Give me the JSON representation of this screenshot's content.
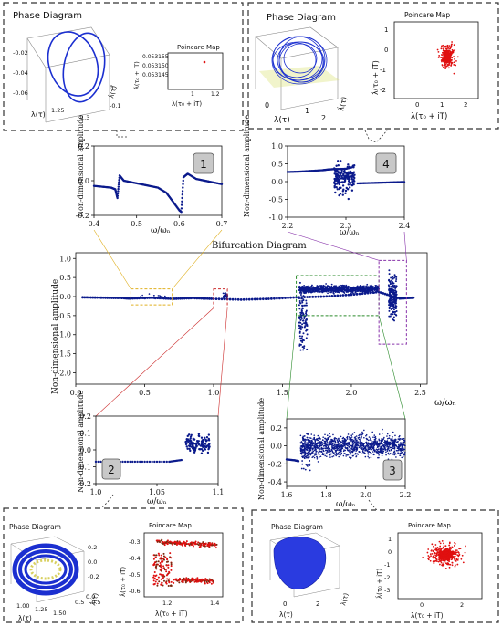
{
  "chart_data": [
    {
      "id": "bifurcation",
      "type": "scatter",
      "title": "Bifurcation Diagram",
      "xlabel": "ω/ωₙ",
      "ylabel": "Non-dimensional amplitude",
      "xlim": [
        0.0,
        2.55
      ],
      "ylim": [
        -2.3,
        1.15
      ],
      "xticks": [
        "0.0",
        "0.5",
        "1.0",
        "1.5",
        "2.0",
        "2.5"
      ],
      "xtick_values": [
        0.0,
        0.5,
        1.0,
        1.5,
        2.0,
        2.5
      ],
      "yticks": [
        "1.0",
        "0.5",
        "0.0",
        "-0.5",
        "-1.0",
        "-1.5",
        "-2.0"
      ],
      "ytick_values": [
        1.0,
        0.5,
        0.0,
        -0.5,
        -1.0,
        -1.5,
        -2.0
      ],
      "branch": [
        [
          0.05,
          -0.02
        ],
        [
          0.2,
          -0.03
        ],
        [
          0.35,
          -0.04
        ],
        [
          0.4,
          -0.05
        ],
        [
          0.55,
          -0.03
        ],
        [
          0.7,
          -0.06
        ],
        [
          0.85,
          -0.04
        ],
        [
          1.0,
          -0.06
        ],
        [
          1.2,
          -0.08
        ],
        [
          1.4,
          -0.06
        ],
        [
          1.6,
          -0.02
        ],
        [
          1.8,
          0.0
        ],
        [
          2.0,
          0.05
        ],
        [
          2.2,
          0.12
        ],
        [
          2.35,
          -0.05
        ],
        [
          2.45,
          -0.03
        ]
      ],
      "zoom_regions": [
        {
          "x": [
            0.4,
            0.7
          ],
          "y": [
            -0.22,
            0.2
          ],
          "color": "#e0b020"
        },
        {
          "x": [
            1.0,
            1.1
          ],
          "y": [
            -0.3,
            0.2
          ],
          "color": "#cc2b2b"
        },
        {
          "x": [
            1.6,
            2.2
          ],
          "y": [
            -0.5,
            0.55
          ],
          "color": "#2a8a2a"
        },
        {
          "x": [
            2.2,
            2.4
          ],
          "y": [
            -1.25,
            0.95
          ],
          "color": "#8833aa"
        }
      ]
    },
    {
      "id": "zoom-1",
      "type": "scatter",
      "badge": "1",
      "xlabel": "ω/ωₙ",
      "ylabel": "Non-dimensional amplitude",
      "xlim": [
        0.4,
        0.7
      ],
      "ylim": [
        -0.2,
        0.2
      ],
      "xticks": [
        "0.4",
        "0.5",
        "0.6",
        "0.7"
      ],
      "xtick_values": [
        0.4,
        0.5,
        0.6,
        0.7
      ],
      "yticks": [
        "0.2",
        "0.0",
        "-0.2"
      ],
      "ytick_values": [
        0.2,
        0.0,
        -0.2
      ],
      "points": [
        [
          0.4,
          -0.03
        ],
        [
          0.42,
          -0.035
        ],
        [
          0.44,
          -0.04
        ],
        [
          0.45,
          -0.05
        ],
        [
          0.455,
          -0.1
        ],
        [
          0.46,
          0.03
        ],
        [
          0.47,
          0.0
        ],
        [
          0.49,
          -0.01
        ],
        [
          0.51,
          -0.02
        ],
        [
          0.53,
          -0.03
        ],
        [
          0.55,
          -0.04
        ],
        [
          0.57,
          -0.07
        ],
        [
          0.585,
          -0.12
        ],
        [
          0.6,
          -0.17
        ],
        [
          0.605,
          -0.18
        ],
        [
          0.61,
          0.02
        ],
        [
          0.62,
          0.04
        ],
        [
          0.64,
          0.01
        ],
        [
          0.66,
          0.0
        ],
        [
          0.68,
          -0.01
        ],
        [
          0.7,
          -0.02
        ]
      ]
    },
    {
      "id": "zoom-4",
      "type": "scatter",
      "badge": "4",
      "xlabel": "ω/ωₙ",
      "ylabel": "Non-dimensional amplitude",
      "xlim": [
        2.2,
        2.4
      ],
      "ylim": [
        -1.0,
        1.0
      ],
      "xticks": [
        "2.2",
        "2.3",
        "2.4"
      ],
      "xtick_values": [
        2.2,
        2.3,
        2.4
      ],
      "yticks": [
        "1.0",
        "0.5",
        "0.0",
        "-0.5",
        "-1.0"
      ],
      "ytick_values": [
        1.0,
        0.5,
        0.0,
        -0.5,
        -1.0
      ],
      "points": [
        [
          2.2,
          0.27
        ],
        [
          2.22,
          0.28
        ],
        [
          2.24,
          0.3
        ],
        [
          2.26,
          0.32
        ],
        [
          2.27,
          0.34
        ],
        [
          2.28,
          0.35
        ],
        [
          2.3,
          0.36
        ],
        [
          2.31,
          0.4
        ],
        [
          2.32,
          -0.05
        ],
        [
          2.34,
          -0.04
        ],
        [
          2.36,
          -0.03
        ],
        [
          2.38,
          -0.02
        ],
        [
          2.4,
          -0.01
        ]
      ],
      "chaotic_band": {
        "x": [
          2.28,
          2.315
        ],
        "y": [
          -0.6,
          0.75
        ]
      }
    },
    {
      "id": "zoom-2",
      "type": "scatter",
      "badge": "2",
      "xlabel": "ω/ωₙ",
      "ylabel": "Non-dimensional amplitude",
      "xlim": [
        1.0,
        1.1
      ],
      "ylim": [
        -0.2,
        0.2
      ],
      "xticks": [
        "1.0",
        "1.05",
        "1.1"
      ],
      "xtick_values": [
        1.0,
        1.05,
        1.1
      ],
      "yticks": [
        "0.2",
        "0.1",
        "0.0",
        "-0.1",
        "-0.2"
      ],
      "ytick_values": [
        0.2,
        0.1,
        0.0,
        -0.1,
        -0.2
      ],
      "points": [
        [
          1.0,
          -0.07
        ],
        [
          1.02,
          -0.07
        ],
        [
          1.04,
          -0.07
        ],
        [
          1.06,
          -0.07
        ],
        [
          1.07,
          -0.06
        ],
        [
          1.075,
          -0.05
        ],
        [
          1.08,
          0.0
        ],
        [
          1.085,
          0.05
        ],
        [
          1.09,
          0.08
        ],
        [
          1.095,
          0.05
        ],
        [
          1.1,
          0.02
        ]
      ],
      "chaotic_band": {
        "x": [
          1.073,
          1.093
        ],
        "y": [
          -0.05,
          0.12
        ]
      }
    },
    {
      "id": "zoom-3",
      "type": "scatter",
      "badge": "3",
      "xlabel": "ω/ωₙ",
      "ylabel": "Non-dimensional amplitude",
      "xlim": [
        1.6,
        2.2
      ],
      "ylim": [
        -0.45,
        0.3
      ],
      "xticks": [
        "1.6",
        "1.8",
        "2.0",
        "2.2"
      ],
      "xtick_values": [
        1.6,
        1.8,
        2.0,
        2.2
      ],
      "yticks": [
        "0.2",
        "0.0",
        "-0.2",
        "-0.4"
      ],
      "ytick_values": [
        0.2,
        0.0,
        -0.2,
        -0.4
      ],
      "points": [
        [
          1.6,
          -0.15
        ],
        [
          1.64,
          -0.16
        ],
        [
          1.66,
          -0.17
        ]
      ],
      "chaotic_band": {
        "x": [
          1.67,
          2.2
        ],
        "y": [
          -0.2,
          0.2
        ]
      }
    }
  ],
  "panels": {
    "top_left": {
      "phase_title": "Phase Diagram",
      "phase_axis_x": "λ(τ)",
      "phase_axis_y": "λ̇(τ)",
      "phase_ticks_z": [
        "-0.02",
        "-0.04",
        "-0.06"
      ],
      "phase_ticks_x": [
        "1.25",
        "1.3"
      ],
      "phase_ticks_y": [
        "0",
        "-0.1"
      ],
      "poincare_title": "Poincare Map",
      "poincare_yticks": [
        "0.053155",
        "0.053150",
        "0.053145"
      ],
      "poincare_xticks": [
        "1",
        "1.2"
      ],
      "poincare_ylabel": "λ̇(τ₀ + iT)",
      "poincare_xlabel": "λ(τ₀ + iT)"
    },
    "top_right": {
      "phase_title": "Phase Diagram",
      "phase_axis_x": "λ(τ)",
      "phase_axis_y": "λ̇(τ)",
      "phase_ticks": [
        "0",
        "1",
        "2"
      ],
      "poincare_title": "Poincare Map",
      "poincare_yticks": [
        "1",
        "0",
        "-1",
        "-2"
      ],
      "poincare_xticks": [
        "0",
        "1",
        "2"
      ],
      "poincare_ylabel": "λ̇(τ₀ + iT)",
      "poincare_xlabel": "λ(τ₀ + iT)"
    },
    "bottom_left": {
      "phase_title": "Phase Diagram",
      "phase_axis_x": "λ(τ)",
      "phase_axis_y": "λ̇(τ)",
      "phase_ticks_x": [
        "1.00",
        "1.25",
        "1.50"
      ],
      "phase_ticks_y": [
        "0.5",
        "0.0",
        "-0.5"
      ],
      "phase_ticks_z": [
        "0.2",
        "0.0",
        "-0.2"
      ],
      "poincare_title": "Poincare Map",
      "poincare_yticks": [
        "-0.3",
        "-0.4",
        "-0.5",
        "-0.6"
      ],
      "poincare_xticks": [
        "1.2",
        "1.4"
      ],
      "poincare_ylabel": "λ̇(τ₀ + iT)",
      "poincare_xlabel": "λ(τ₀ + iT)"
    },
    "bottom_right": {
      "phase_title": "Phase Diagram",
      "phase_axis_x": "λ(τ)",
      "phase_axis_y": "λ̇(τ)",
      "phase_ticks": [
        "0",
        "2"
      ],
      "poincare_title": "Poincare Map",
      "poincare_yticks": [
        "1",
        "0",
        "-1",
        "-2",
        "-3"
      ],
      "poincare_xticks": [
        "0",
        "2"
      ],
      "poincare_ylabel": "λ̇(τ₀ + iT)",
      "poincare_xlabel": "λ(τ₀ + iT)"
    }
  },
  "colors": {
    "series": "#0b1a8c",
    "poincare": "#e01010",
    "zoom_1": "#e0b020",
    "zoom_2": "#cc2b2b",
    "zoom_3": "#2a8a2a",
    "zoom_4": "#8833aa"
  }
}
